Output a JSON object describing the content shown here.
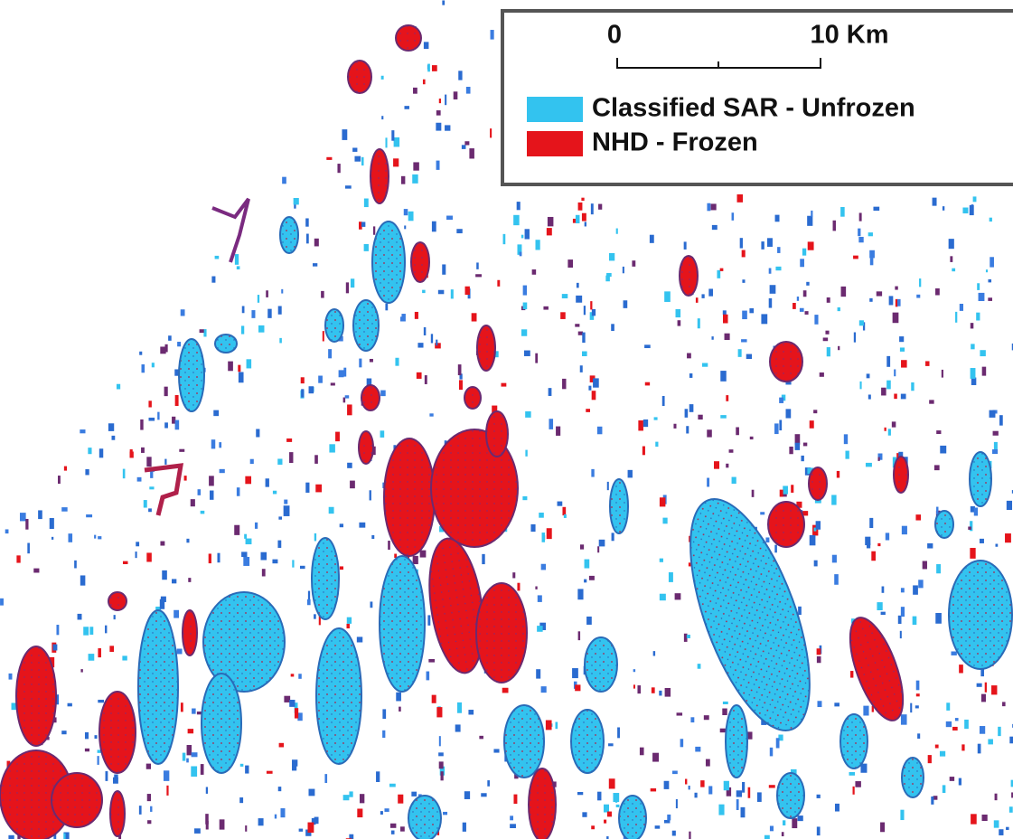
{
  "scale_bar": {
    "labels": [
      "0",
      "10 Km"
    ]
  },
  "legend": {
    "items": [
      {
        "label": "Classified SAR - Unfrozen",
        "color": "#33c3ef"
      },
      {
        "label": "NHD - Frozen",
        "color": "#e5141b"
      }
    ]
  }
}
